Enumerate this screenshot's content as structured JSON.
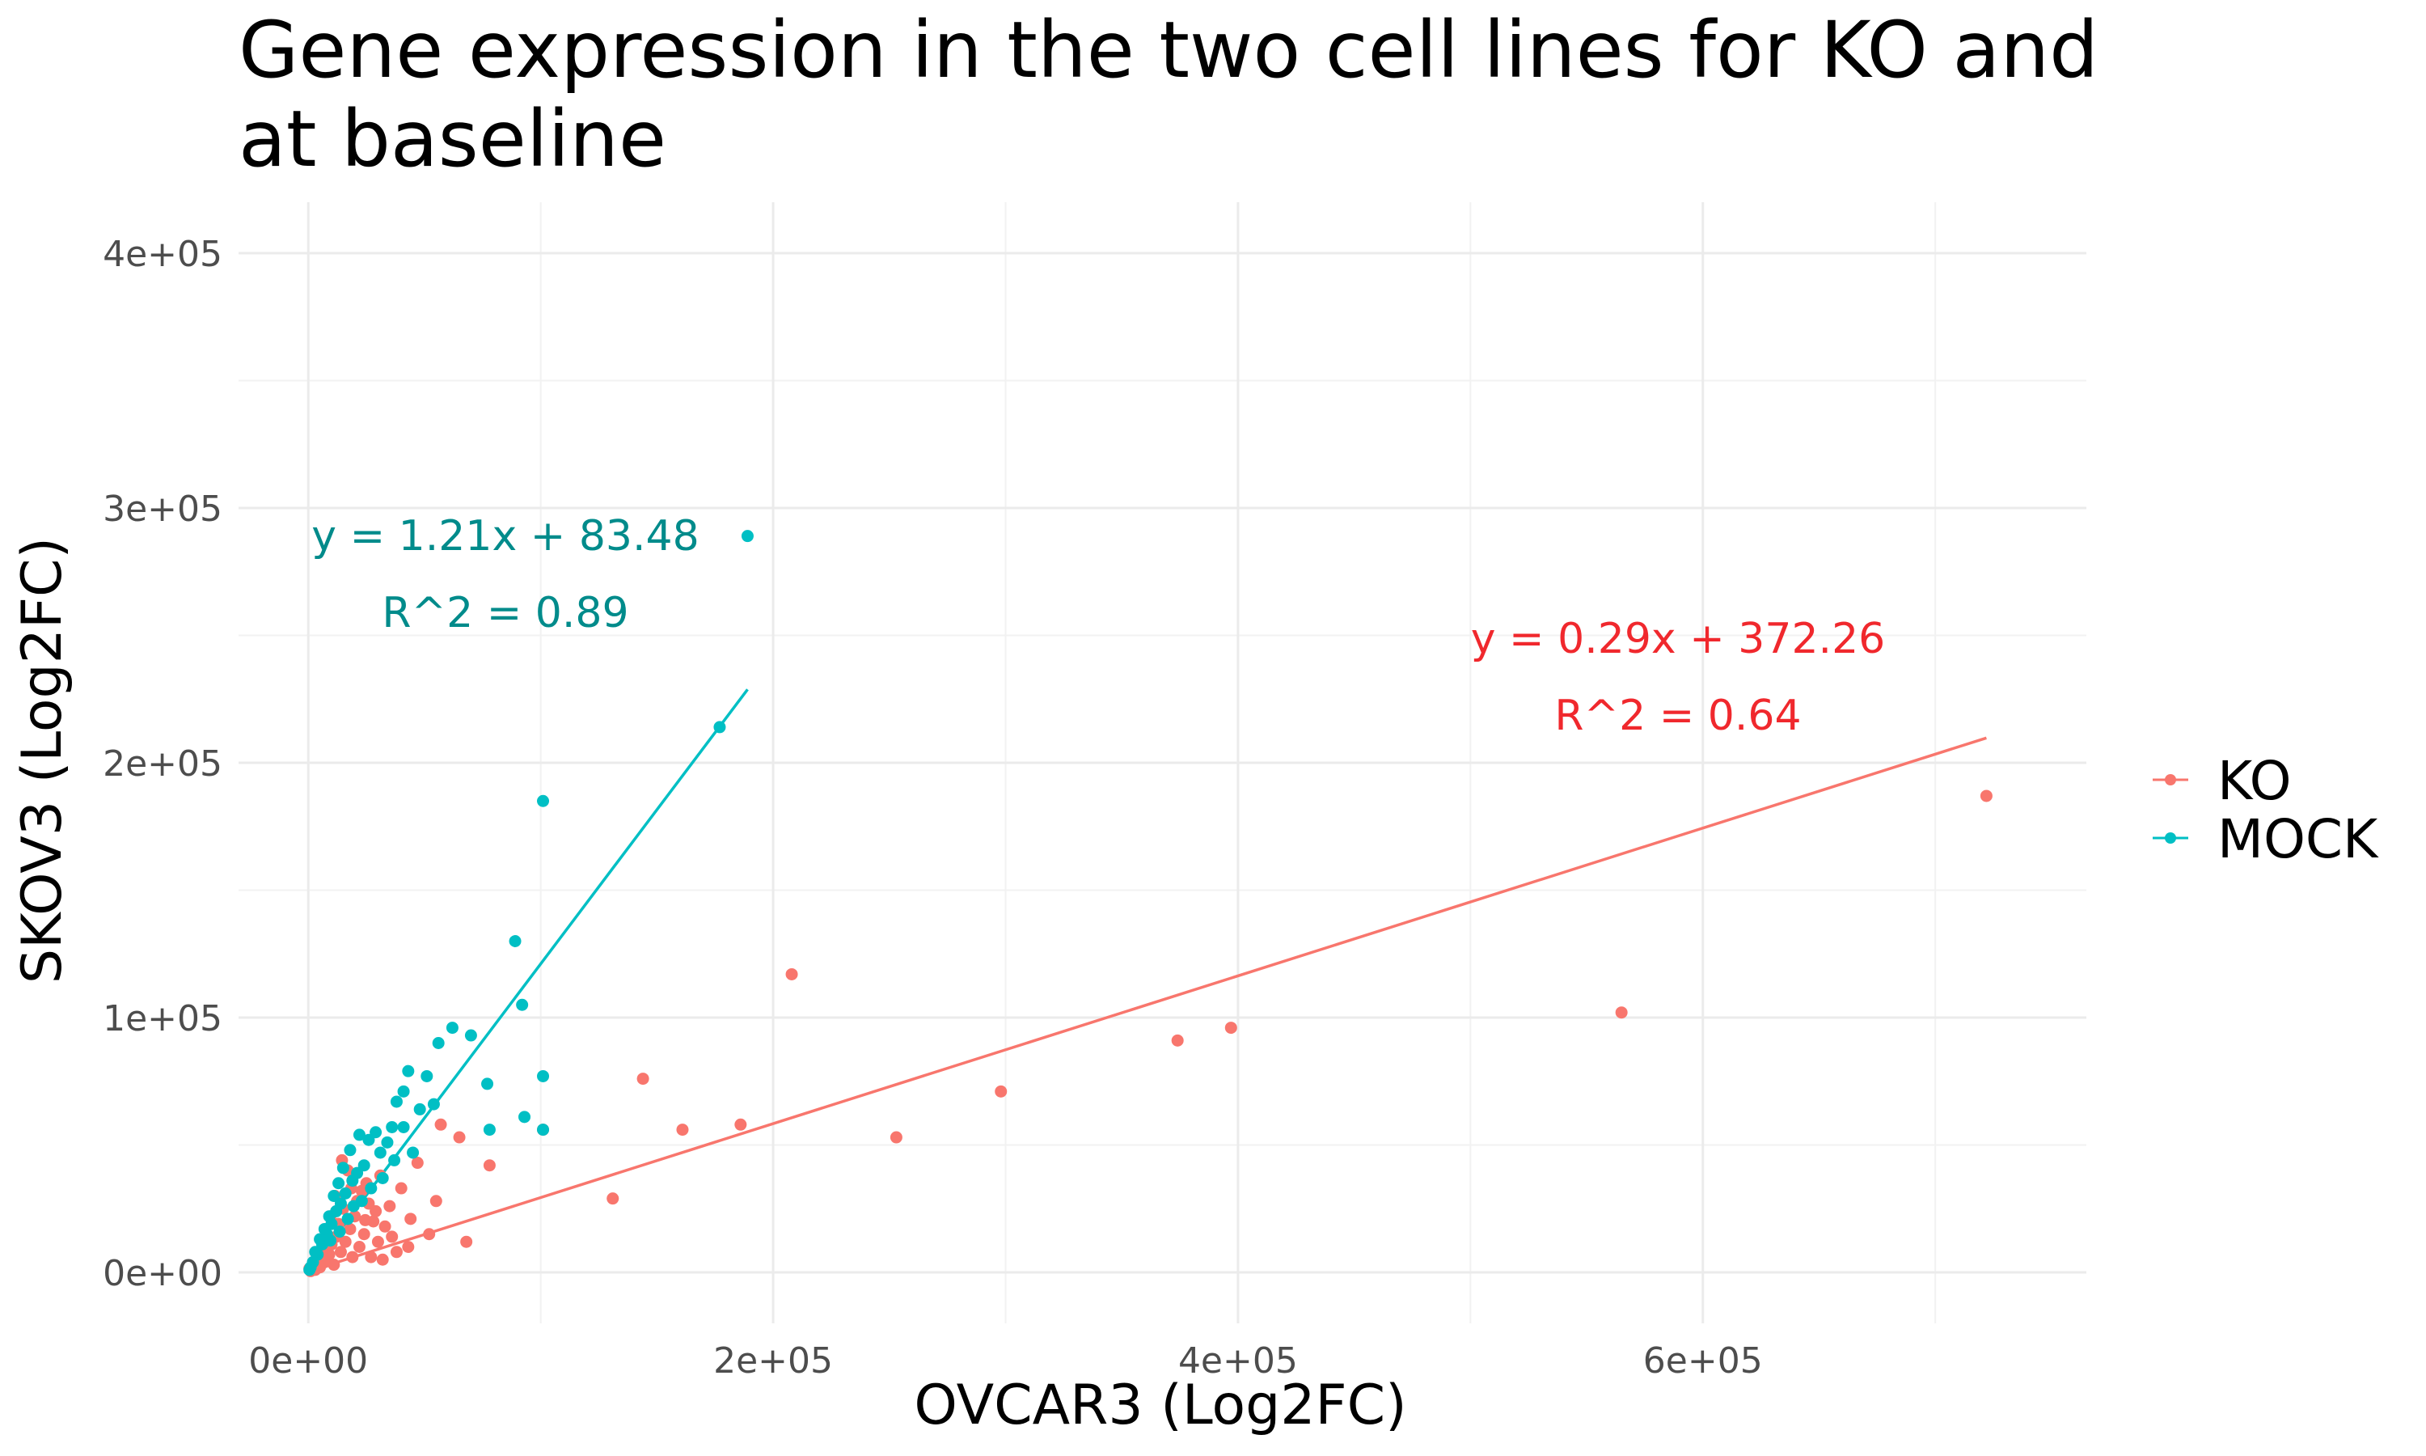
{
  "chart_data": {
    "type": "scatter",
    "title_lines": [
      "Gene expression in the two cell lines for KO and",
      "at baseline"
    ],
    "xlabel": "OVCAR3 (Log2FC)",
    "ylabel": "SKOV3 (Log2FC)",
    "xlim": [
      -30000,
      765000
    ],
    "ylim": [
      -20000,
      420000
    ],
    "x_ticks": [
      0,
      200000,
      400000,
      600000
    ],
    "x_tick_labels": [
      "0e+00",
      "2e+05",
      "4e+05",
      "6e+05"
    ],
    "y_ticks": [
      0,
      100000,
      200000,
      300000,
      400000
    ],
    "y_tick_labels": [
      "0e+00",
      "1e+05",
      "2e+05",
      "3e+05",
      "4e+05"
    ],
    "grid": true,
    "legend_position": "right",
    "series": [
      {
        "name": "KO",
        "color": "#F8766D",
        "fit": {
          "slope": 0.29,
          "intercept": 372.26,
          "x_range": [
            0,
            722000
          ]
        },
        "equation_lines": [
          "y = 0.29x + 372.26",
          "R^2 = 0.64"
        ],
        "points": [
          [
            722000,
            187000
          ],
          [
            565000,
            102000
          ],
          [
            397000,
            96000
          ],
          [
            374000,
            91000
          ],
          [
            298000,
            71000
          ],
          [
            253000,
            53000
          ],
          [
            208000,
            117000
          ],
          [
            186000,
            58000
          ],
          [
            161000,
            56000
          ],
          [
            144000,
            76000
          ],
          [
            131000,
            29000
          ],
          [
            101000,
            56000
          ],
          [
            78000,
            42000
          ],
          [
            68000,
            12000
          ],
          [
            65000,
            53000
          ],
          [
            57000,
            58000
          ],
          [
            55000,
            28000
          ],
          [
            52000,
            15000
          ],
          [
            47000,
            43000
          ],
          [
            44000,
            21000
          ],
          [
            40000,
            33000
          ],
          [
            38000,
            8000
          ],
          [
            35000,
            26000
          ],
          [
            33000,
            18000
          ],
          [
            31000,
            38000
          ],
          [
            30000,
            12000
          ],
          [
            28000,
            20000
          ],
          [
            26000,
            27000
          ],
          [
            24000,
            15000
          ],
          [
            23000,
            32000
          ],
          [
            22000,
            10000
          ],
          [
            20000,
            22000
          ],
          [
            19000,
            6000
          ],
          [
            18000,
            17000
          ],
          [
            17000,
            40000
          ],
          [
            16000,
            12000
          ],
          [
            15000,
            25000
          ],
          [
            14000,
            8000
          ],
          [
            13000,
            19000
          ],
          [
            12000,
            14000
          ],
          [
            11000,
            3000
          ],
          [
            10000,
            11000
          ],
          [
            9000,
            7000
          ],
          [
            8000,
            15000
          ],
          [
            7000,
            4000
          ],
          [
            6000,
            9000
          ],
          [
            5000,
            2000
          ],
          [
            4000,
            6000
          ],
          [
            3000,
            1000
          ],
          [
            2000,
            3000
          ],
          [
            1000,
            500
          ],
          [
            500,
            1500
          ],
          [
            25000,
            35000
          ],
          [
            21000,
            28000
          ],
          [
            29000,
            24000
          ],
          [
            36000,
            14000
          ],
          [
            43000,
            10000
          ],
          [
            27000,
            6000
          ],
          [
            32000,
            5000
          ],
          [
            14500,
            44000
          ],
          [
            11500,
            30000
          ],
          [
            9500,
            22000
          ],
          [
            18500,
            33000
          ],
          [
            24500,
            20500
          ]
        ]
      },
      {
        "name": "MOCK",
        "color": "#00BFC4",
        "fit": {
          "slope": 1.21,
          "intercept": 83.48,
          "x_range": [
            0,
            189000
          ]
        },
        "equation_lines": [
          "y = 1.21x + 83.48",
          "R^2 = 0.89"
        ],
        "points": [
          [
            189000,
            289000
          ],
          [
            177000,
            214000
          ],
          [
            101000,
            185000
          ],
          [
            92000,
            105000
          ],
          [
            89000,
            130000
          ],
          [
            101000,
            77000
          ],
          [
            101000,
            56000
          ],
          [
            93000,
            61000
          ],
          [
            77000,
            74000
          ],
          [
            78000,
            56000
          ],
          [
            70000,
            93000
          ],
          [
            62000,
            96000
          ],
          [
            56000,
            90000
          ],
          [
            51000,
            77000
          ],
          [
            54000,
            66000
          ],
          [
            48000,
            64000
          ],
          [
            43000,
            79000
          ],
          [
            41000,
            71000
          ],
          [
            38000,
            67000
          ],
          [
            36000,
            57000
          ],
          [
            41000,
            57000
          ],
          [
            34000,
            51000
          ],
          [
            31000,
            47000
          ],
          [
            29000,
            55000
          ],
          [
            26000,
            52000
          ],
          [
            24000,
            42000
          ],
          [
            22000,
            54000
          ],
          [
            21000,
            39000
          ],
          [
            19000,
            36000
          ],
          [
            18000,
            48000
          ],
          [
            16000,
            31000
          ],
          [
            15000,
            41000
          ],
          [
            14000,
            27000
          ],
          [
            13000,
            35000
          ],
          [
            12000,
            24000
          ],
          [
            11000,
            30000
          ],
          [
            10000,
            19000
          ],
          [
            9000,
            22000
          ],
          [
            8000,
            15000
          ],
          [
            7000,
            17000
          ],
          [
            6000,
            11000
          ],
          [
            5000,
            13000
          ],
          [
            4000,
            7000
          ],
          [
            3000,
            8000
          ],
          [
            2000,
            4000
          ],
          [
            1000,
            2000
          ],
          [
            500,
            1000
          ],
          [
            17000,
            21000
          ],
          [
            23000,
            28000
          ],
          [
            27000,
            33000
          ],
          [
            32000,
            37000
          ],
          [
            37000,
            44000
          ],
          [
            45000,
            47000
          ],
          [
            19500,
            26000
          ],
          [
            13500,
            16000
          ],
          [
            9500,
            12500
          ]
        ]
      }
    ]
  }
}
